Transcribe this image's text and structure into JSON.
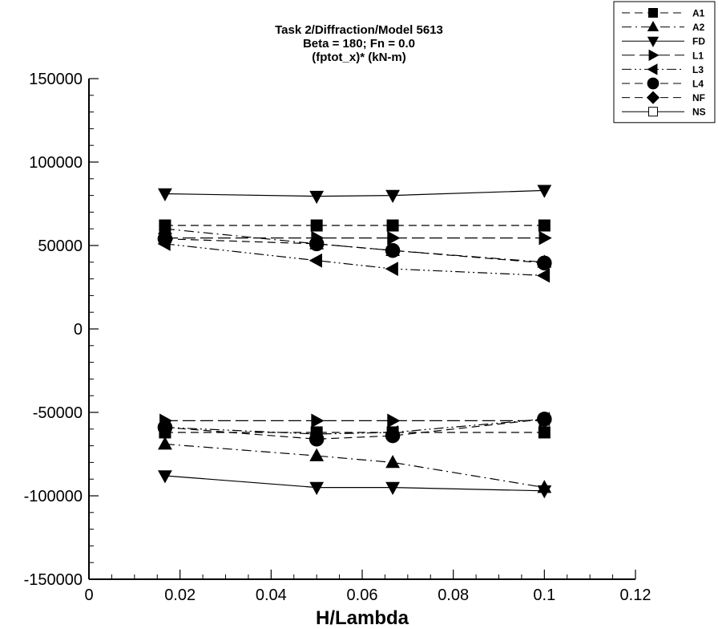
{
  "chart_data": {
    "type": "line",
    "title_lines": [
      "Task 2/Diffraction/Model 5613",
      "Beta = 180; Fn = 0.0",
      "(fptot_x)* (kN-m)"
    ],
    "xlabel": "H/Lambda",
    "ylabel": "",
    "xlim": [
      0,
      0.12
    ],
    "ylim": [
      -150000,
      150000
    ],
    "x_ticks": [
      0,
      0.02,
      0.04,
      0.06,
      0.08,
      0.1,
      0.12
    ],
    "x_tick_labels": [
      "0",
      "0.02",
      "0.04",
      "0.06",
      "0.08",
      "0.1",
      "0.12"
    ],
    "y_ticks": [
      -150000,
      -100000,
      -50000,
      0,
      50000,
      100000,
      150000
    ],
    "y_tick_labels": [
      "-150000",
      "-100000",
      "-50000",
      "0",
      "50000",
      "100000",
      "150000"
    ],
    "x_minor_per_major": 4,
    "y_minor_per_major": 5,
    "grid": false,
    "legend_position": "top-right",
    "series": [
      {
        "name": "A1",
        "marker": "square",
        "dash": "dash",
        "x": [
          0.0167,
          0.05,
          0.0667,
          0.1
        ],
        "y": [
          62000,
          62000,
          62000,
          62000
        ]
      },
      {
        "name": "A1",
        "marker": "square",
        "dash": "dash",
        "x": [
          0.0167,
          0.05,
          0.0667,
          0.1
        ],
        "y": [
          -62000,
          -62000,
          -62000,
          -62000
        ],
        "legend": false
      },
      {
        "name": "A2",
        "marker": "triangle-up",
        "dash": "dashdot",
        "x": [
          0.0167,
          0.05,
          0.0667,
          0.1
        ],
        "y": [
          60000,
          51000,
          47000,
          40000
        ]
      },
      {
        "name": "A2",
        "marker": "triangle-up",
        "dash": "dashdot",
        "x": [
          0.0167,
          0.05,
          0.0667,
          0.1
        ],
        "y": [
          -69000,
          -76000,
          -80000,
          -95000
        ],
        "legend": false
      },
      {
        "name": "FD",
        "marker": "triangle-down",
        "dash": "solid",
        "x": [
          0.0167,
          0.05,
          0.0667,
          0.1
        ],
        "y": [
          81000,
          79500,
          80000,
          83000
        ]
      },
      {
        "name": "FD",
        "marker": "triangle-down",
        "dash": "solid",
        "x": [
          0.0167,
          0.05,
          0.0667,
          0.1
        ],
        "y": [
          -88000,
          -95000,
          -95000,
          -97000
        ],
        "legend": false
      },
      {
        "name": "L1",
        "marker": "triangle-right",
        "dash": "longdash",
        "x": [
          0.0167,
          0.05,
          0.0667,
          0.1
        ],
        "y": [
          54500,
          54500,
          54500,
          54500
        ]
      },
      {
        "name": "L1",
        "marker": "triangle-right",
        "dash": "longdash",
        "x": [
          0.0167,
          0.05,
          0.0667,
          0.1
        ],
        "y": [
          -55000,
          -55000,
          -55000,
          -55000
        ],
        "legend": false
      },
      {
        "name": "L3",
        "marker": "triangle-left",
        "dash": "dashdotdot",
        "x": [
          0.0167,
          0.05,
          0.0667,
          0.1
        ],
        "y": [
          51000,
          41000,
          36000,
          32000
        ]
      },
      {
        "name": "L3",
        "marker": "triangle-left",
        "dash": "dashdotdot",
        "x": [
          0.0167,
          0.05,
          0.0667,
          0.1
        ],
        "y": [
          -59000,
          -63000,
          -62000,
          -54000
        ],
        "legend": false
      },
      {
        "name": "L4",
        "marker": "circle",
        "dash": "dash",
        "x": [
          0.0167,
          0.05,
          0.0667,
          0.1
        ],
        "y": [
          54000,
          51000,
          47000,
          39500
        ]
      },
      {
        "name": "L4",
        "marker": "circle",
        "dash": "dash",
        "x": [
          0.0167,
          0.05,
          0.0667,
          0.1
        ],
        "y": [
          -59000,
          -66000,
          -64000,
          -54000
        ],
        "legend": false
      },
      {
        "name": "NF",
        "marker": "diamond",
        "dash": "dash",
        "x": [],
        "y": []
      },
      {
        "name": "NS",
        "marker": "square-open",
        "dash": "solid",
        "x": [],
        "y": []
      }
    ]
  }
}
